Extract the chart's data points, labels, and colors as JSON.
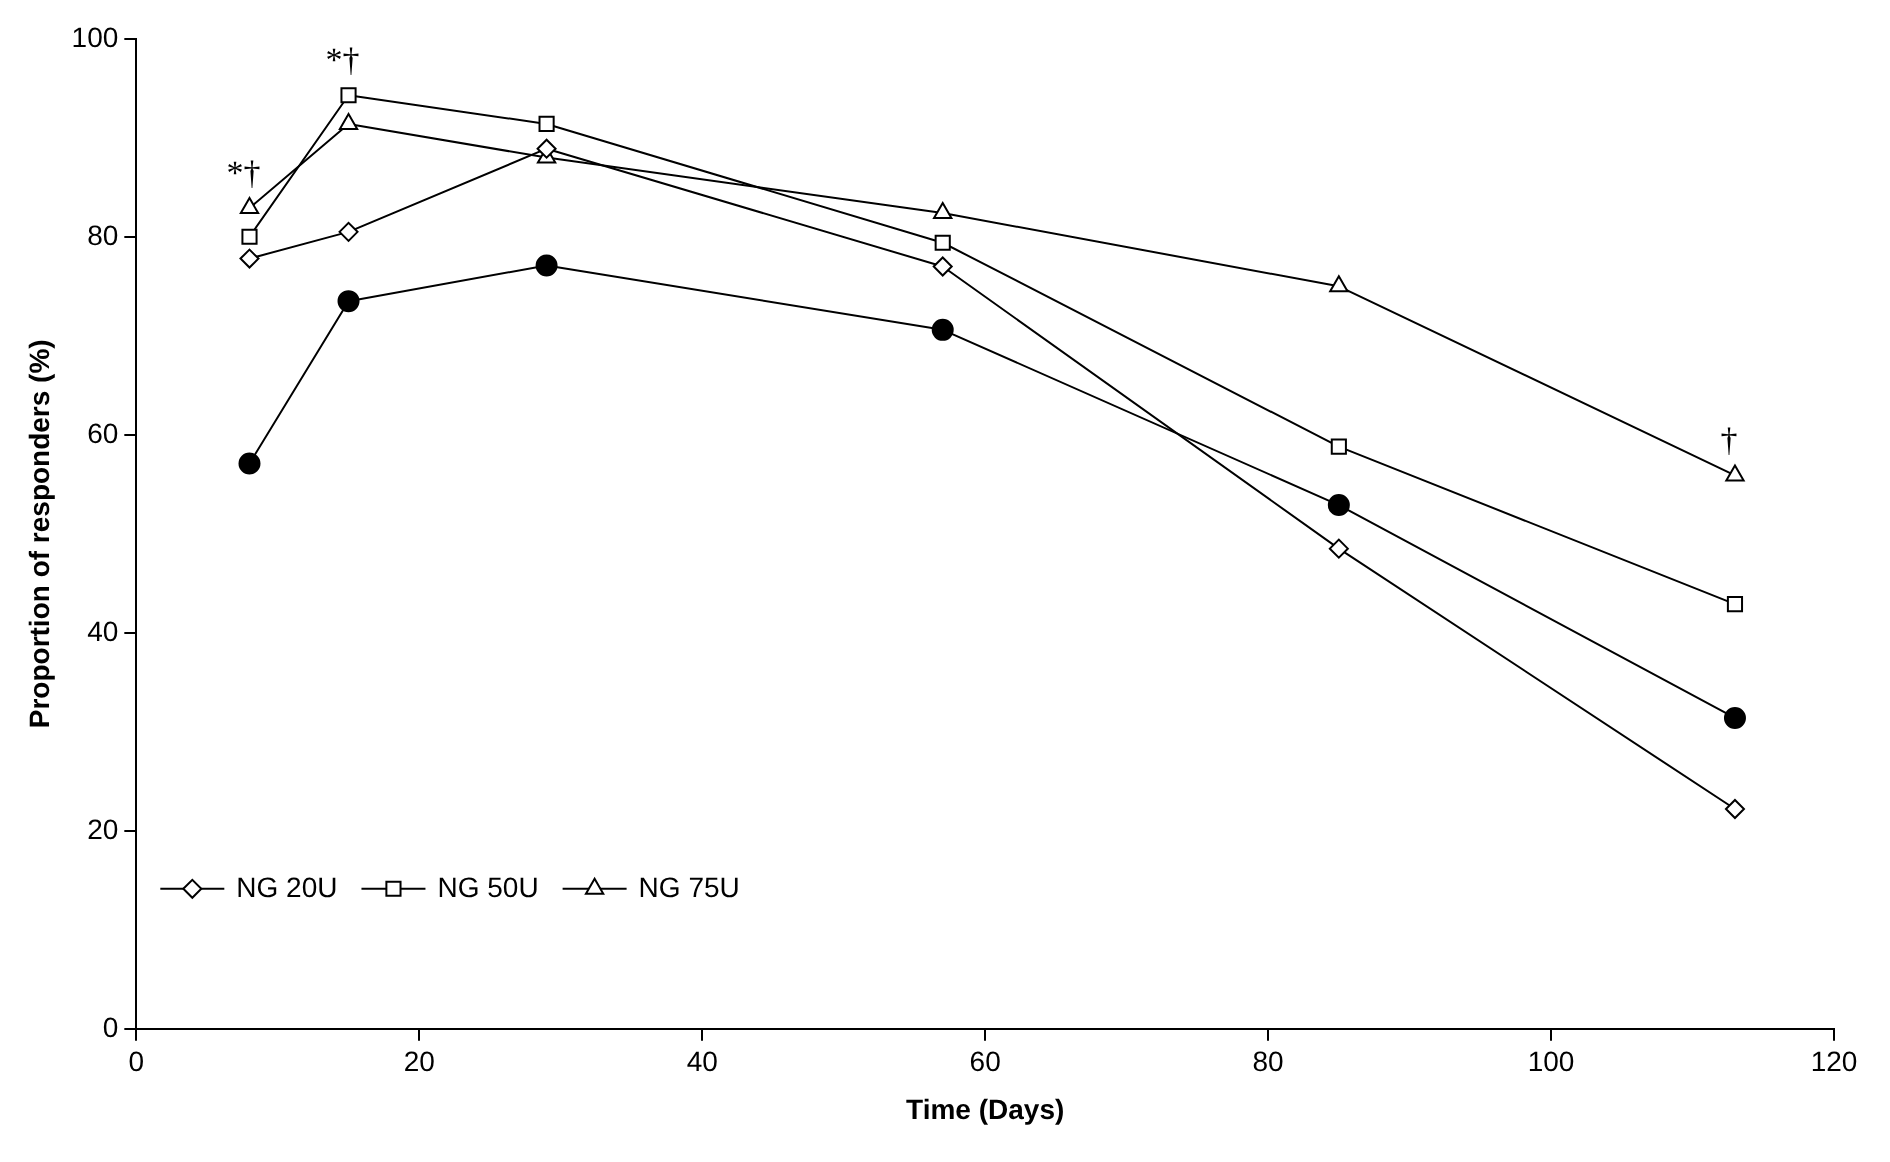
{
  "chart_data": {
    "type": "line",
    "xlabel": "Time (Days)",
    "ylabel": "Proportion of responders (%)",
    "x": [
      8,
      15,
      29,
      57,
      85,
      113
    ],
    "xlim": [
      0,
      120
    ],
    "xticks": [
      0,
      20,
      40,
      60,
      80,
      100,
      120
    ],
    "ylim": [
      0,
      100
    ],
    "yticks": [
      0,
      20,
      40,
      60,
      80,
      100
    ],
    "grid": false,
    "legend": "bottom left",
    "line_style": "solid",
    "series": [
      {
        "name": "NG 20U",
        "color": "#000000",
        "marker": "diamond",
        "values": [
          77.8,
          80.5,
          88.9,
          77,
          48.5,
          22.2
        ]
      },
      {
        "name": "NG 50U",
        "color": "#000000",
        "marker": "square",
        "values": [
          80,
          94.3,
          91.4,
          79.4,
          58.8,
          42.9
        ]
      },
      {
        "name": "NG 75U",
        "color": "#000000",
        "marker": "triangle",
        "values": [
          82.9,
          91.4,
          88,
          82.4,
          75,
          55.9
        ]
      },
      {
        "color": "#000000",
        "marker": "circle",
        "values": [
          57.1,
          73.5,
          77.1,
          70.6,
          52.9,
          31.4
        ]
      }
    ],
    "annotations": [
      {
        "text": "*†",
        "x": 8,
        "y": 82.9
      },
      {
        "text": "*†",
        "x": 15,
        "y": 94.3
      },
      {
        "text": "†",
        "x": 113,
        "y": 55.9
      }
    ]
  }
}
